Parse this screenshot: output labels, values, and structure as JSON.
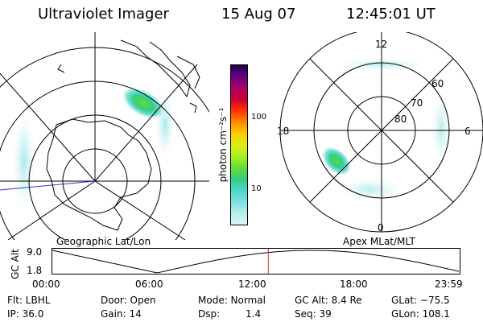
{
  "header": {
    "title": "Ultraviolet Imager",
    "date": "15 Aug 07",
    "time": "12:45:01 UT"
  },
  "geo_panel": {
    "label": "Geographic Lat/Lon"
  },
  "colorbar": {
    "unit_label": "photon cm⁻²s⁻¹",
    "ticks": [
      "100",
      "10"
    ],
    "scale": "log",
    "colors": [
      "#e0f4f4",
      "#b8ecec",
      "#7fe0e0",
      "#4fd6cc",
      "#33cc88",
      "#66dd33",
      "#aaee22",
      "#ddee11",
      "#ffcc00",
      "#ff8800",
      "#ff3300",
      "#cc0033",
      "#aa0066",
      "#660088",
      "#220044"
    ]
  },
  "polar_panel": {
    "label": "Apex MLat/MLT",
    "mlt_labels": [
      "12",
      "18",
      "6",
      "0"
    ],
    "lat_labels": [
      "60",
      "70",
      "80"
    ]
  },
  "altitude_plot": {
    "y_label": "GC Alt",
    "y_ticks": [
      "9.0",
      "1.8"
    ],
    "x_ticks": [
      "00:00",
      "06:00",
      "12:00",
      "18:00",
      "23:59"
    ],
    "current_marker_time": "12:45",
    "marker_color": "#cc3333"
  },
  "footer": {
    "row1": {
      "filter": "Flt: LBHL",
      "door": "Door: Open",
      "mode": "Mode: Normal",
      "gc_alt": "GC Alt: 8.4 Re",
      "glat": "GLat: −75.5"
    },
    "row2": {
      "ip": "IP: 36.0",
      "gain": "Gain: 14",
      "dsp_label": "Dsp:",
      "dsp_value": "1.4",
      "seq": "Seq: 39",
      "glon": "GLon: 108.1"
    }
  }
}
